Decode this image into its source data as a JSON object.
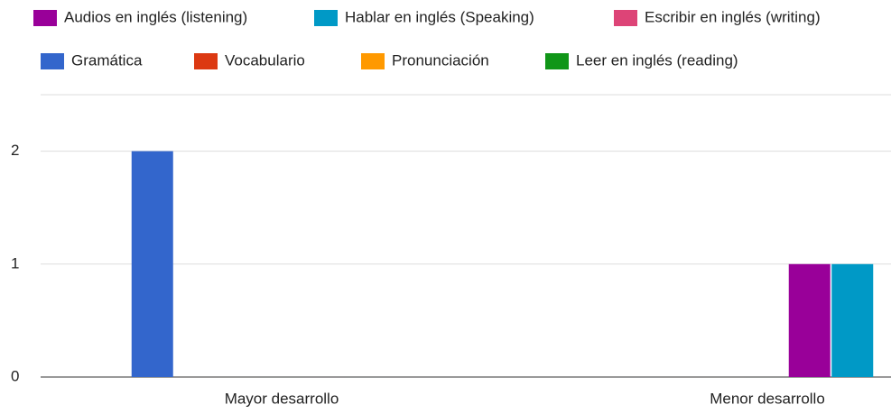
{
  "chart_data": {
    "type": "bar",
    "categories": [
      "Mayor desarrollo",
      "Menor desarrollo"
    ],
    "series": [
      {
        "name": "Audios en inglés (listening)",
        "color": "#990099",
        "values": [
          0,
          1
        ]
      },
      {
        "name": "Hablar en inglés (Speaking)",
        "color": "#0099c6",
        "values": [
          0,
          1
        ]
      },
      {
        "name": "Escribir en inglés (writing)",
        "color": "#dd4477",
        "values": [
          0,
          0
        ]
      },
      {
        "name": "Gramática",
        "color": "#3366cc",
        "values": [
          2,
          0
        ]
      },
      {
        "name": "Vocabulario",
        "color": "#dc3912",
        "values": [
          0,
          0
        ]
      },
      {
        "name": "Pronunciación",
        "color": "#ff9900",
        "values": [
          0,
          0
        ]
      },
      {
        "name": "Leer en inglés (reading)",
        "color": "#109618",
        "values": [
          0,
          0
        ]
      }
    ],
    "ylim": [
      0,
      2.5
    ],
    "yticks": [
      0,
      1,
      2
    ],
    "grid": true
  }
}
